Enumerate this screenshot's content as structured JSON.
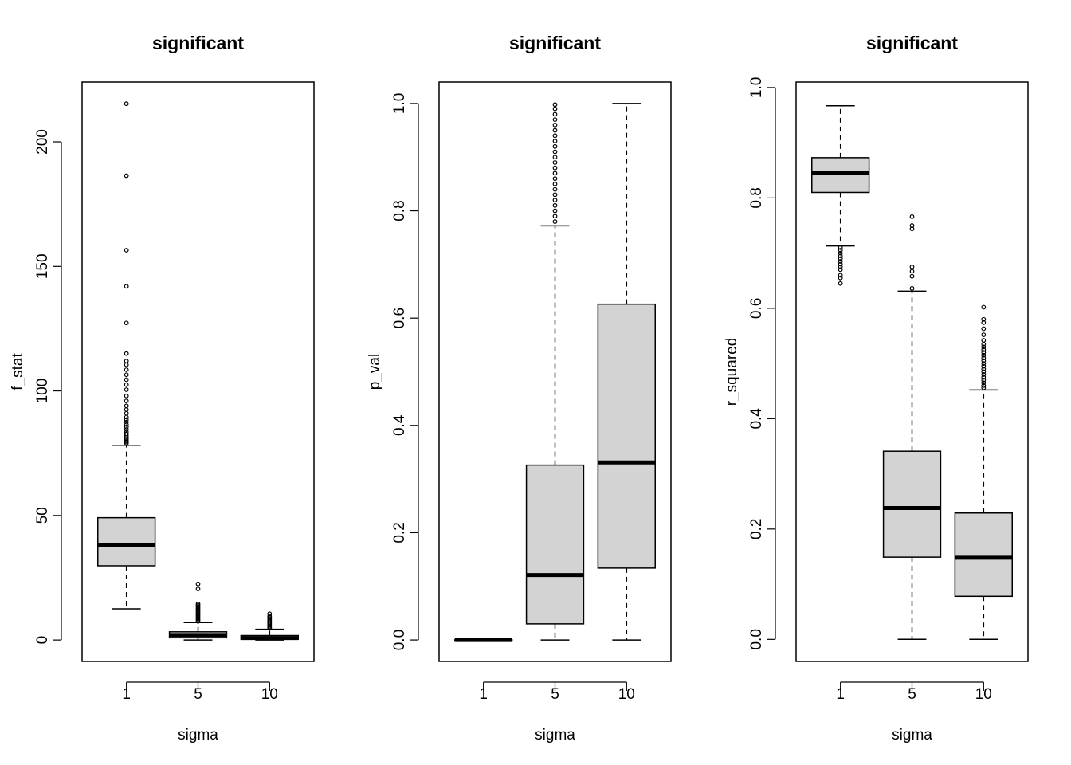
{
  "chart_data": [
    {
      "type": "boxplot",
      "title": "significant",
      "xlabel": "sigma",
      "ylabel": "f_stat",
      "categories": [
        "1",
        "5",
        "10"
      ],
      "ylim": [
        -8.6,
        224
      ],
      "yticks": [
        0,
        50,
        100,
        150,
        200
      ],
      "ytick_labels": [
        "0",
        "50",
        "100",
        "150",
        "200"
      ],
      "boxes": [
        {
          "category": "1",
          "whisker_low": 12.5,
          "q1": 29.8,
          "median": 38.2,
          "q3": 49.1,
          "whisker_high": 78.2,
          "outliers": [
            215.3,
            186.4,
            156.5,
            142,
            127.3,
            115,
            112,
            110.5,
            108.5,
            106.5,
            104.5,
            102.5,
            100.5,
            98,
            96,
            94,
            92.5,
            91,
            89.5,
            88.5,
            87.5,
            86.5,
            85.5,
            84.5,
            83.5,
            82.7,
            82,
            81.3,
            80.7,
            80,
            79.5,
            79
          ]
        },
        {
          "category": "5",
          "whisker_low": 0,
          "q1": 0.9,
          "median": 2,
          "q3": 3.3,
          "whisker_high": 7,
          "outliers": [
            22.5,
            20.5,
            14.5,
            14,
            13.5,
            13,
            12.5,
            12,
            11.5,
            11,
            10.5,
            10,
            9.5,
            9,
            8.5,
            8,
            7.5
          ]
        },
        {
          "category": "10",
          "whisker_low": 0,
          "q1": 0.3,
          "median": 0.8,
          "q3": 1.8,
          "whisker_high": 4.3,
          "outliers": [
            10.5,
            9.5,
            9,
            8.5,
            8,
            7.5,
            7,
            6.5,
            6,
            5.5,
            5,
            4.7
          ]
        }
      ]
    },
    {
      "type": "boxplot",
      "title": "significant",
      "xlabel": "sigma",
      "ylabel": "p_val",
      "categories": [
        "1",
        "5",
        "10"
      ],
      "ylim": [
        -0.04,
        1.04
      ],
      "yticks": [
        0,
        0.2,
        0.4,
        0.6,
        0.8,
        1
      ],
      "ytick_labels": [
        "0.0",
        "0.2",
        "0.4",
        "0.6",
        "0.8",
        "1.0"
      ],
      "boxes": [
        {
          "category": "1",
          "whisker_low": 0,
          "q1": 0,
          "median": 0,
          "q3": 0.0003,
          "whisker_high": 0.0007,
          "outliers": []
        },
        {
          "category": "5",
          "whisker_low": 0,
          "q1": 0.03,
          "median": 0.121,
          "q3": 0.326,
          "whisker_high": 0.772,
          "outliers": [
            0.998,
            0.99,
            0.98,
            0.97,
            0.96,
            0.95,
            0.94,
            0.93,
            0.92,
            0.91,
            0.9,
            0.89,
            0.88,
            0.87,
            0.86,
            0.85,
            0.84,
            0.83,
            0.82,
            0.81,
            0.8,
            0.79,
            0.78
          ]
        },
        {
          "category": "10",
          "whisker_low": 0,
          "q1": 0.134,
          "median": 0.331,
          "q3": 0.626,
          "whisker_high": 1,
          "outliers": []
        }
      ]
    },
    {
      "type": "boxplot",
      "title": "significant",
      "xlabel": "sigma",
      "ylabel": "r_squared",
      "categories": [
        "1",
        "5",
        "10"
      ],
      "ylim": [
        -0.04,
        1.01
      ],
      "yticks": [
        0,
        0.2,
        0.4,
        0.6,
        0.8,
        1
      ],
      "ytick_labels": [
        "0.0",
        "0.2",
        "0.4",
        "0.6",
        "0.8",
        "1.0"
      ],
      "boxes": [
        {
          "category": "1",
          "whisker_low": 0.713,
          "q1": 0.81,
          "median": 0.845,
          "q3": 0.873,
          "whisker_high": 0.967,
          "outliers": [
            0.71,
            0.705,
            0.7,
            0.695,
            0.69,
            0.685,
            0.68,
            0.675,
            0.67,
            0.66,
            0.655,
            0.645
          ]
        },
        {
          "category": "5",
          "whisker_low": 0,
          "q1": 0.149,
          "median": 0.238,
          "q3": 0.341,
          "whisker_high": 0.631,
          "outliers": [
            0.766,
            0.75,
            0.744,
            0.675,
            0.667,
            0.658,
            0.636
          ]
        },
        {
          "category": "10",
          "whisker_low": 0,
          "q1": 0.078,
          "median": 0.148,
          "q3": 0.229,
          "whisker_high": 0.452,
          "outliers": [
            0.602,
            0.58,
            0.574,
            0.563,
            0.552,
            0.542,
            0.535,
            0.53,
            0.525,
            0.52,
            0.515,
            0.51,
            0.505,
            0.5,
            0.495,
            0.49,
            0.485,
            0.48,
            0.475,
            0.47,
            0.465,
            0.46,
            0.456
          ]
        }
      ]
    }
  ]
}
